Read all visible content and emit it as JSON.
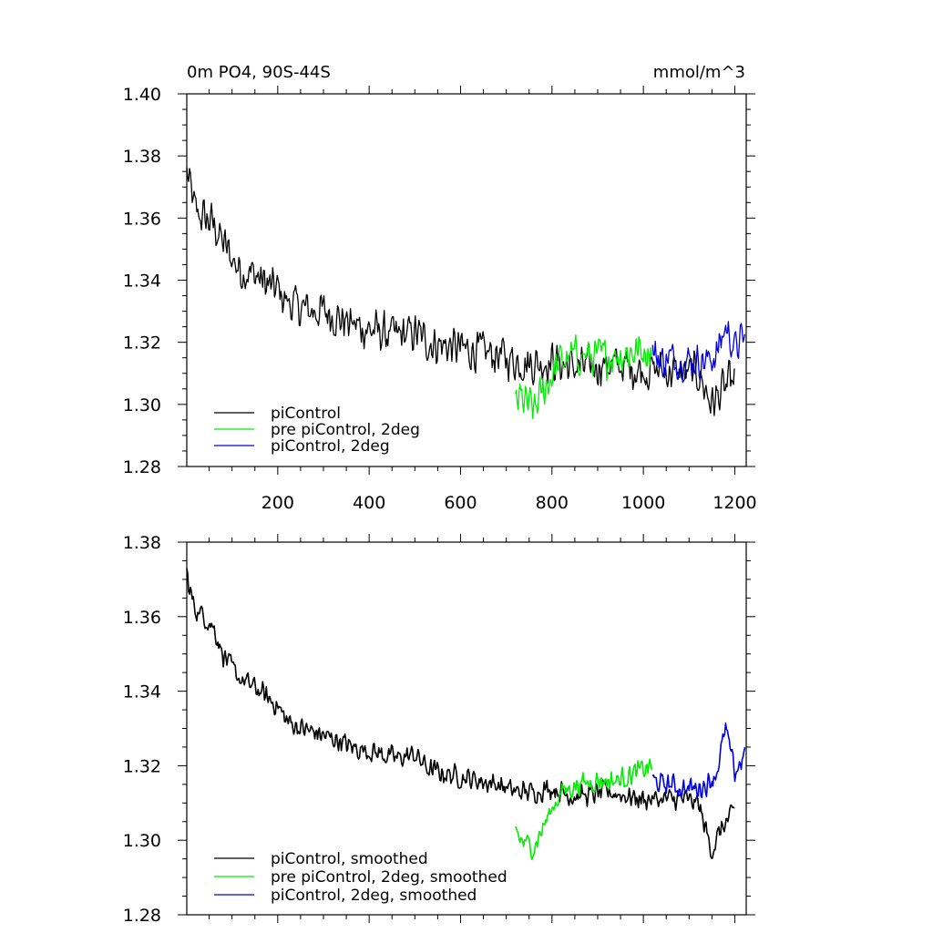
{
  "colors": {
    "piControl": "#000000",
    "pre_piControl_2deg": "#00ee00",
    "piControl_2deg": "#0000dd"
  },
  "chart_data": [
    {
      "type": "line",
      "title_left": "0m PO4, 90S-44S",
      "title_right": "mmol/m^3",
      "xlabel": "",
      "ylabel": "",
      "xlim": [
        1,
        1225
      ],
      "ylim": [
        1.28,
        1.4
      ],
      "xticks": [
        200,
        400,
        600,
        800,
        1000,
        1200
      ],
      "xtick_labels": [
        "200",
        "400",
        "600",
        "800",
        "1000",
        "1200"
      ],
      "yticks": [
        1.28,
        1.3,
        1.32,
        1.34,
        1.36,
        1.38,
        1.4
      ],
      "ytick_labels": [
        "1.28",
        "1.30",
        "1.32",
        "1.34",
        "1.36",
        "1.38",
        "1.40"
      ],
      "legend_location": "bottom-left",
      "series": [
        {
          "name": "piControl",
          "color": "#000000",
          "noise": 0.008,
          "x": [
            1,
            5,
            20,
            40,
            60,
            80,
            100,
            120,
            150,
            180,
            200,
            220,
            250,
            280,
            300,
            330,
            360,
            400,
            430,
            460,
            500,
            530,
            560,
            600,
            640,
            680,
            720,
            760,
            800,
            840,
            880,
            920,
            960,
            1000,
            1040,
            1080,
            1120,
            1150,
            1170,
            1190,
            1200
          ],
          "y": [
            1.375,
            1.372,
            1.362,
            1.36,
            1.358,
            1.352,
            1.347,
            1.343,
            1.342,
            1.338,
            1.337,
            1.333,
            1.331,
            1.33,
            1.33,
            1.328,
            1.326,
            1.324,
            1.323,
            1.322,
            1.323,
            1.32,
            1.319,
            1.318,
            1.317,
            1.316,
            1.314,
            1.313,
            1.314,
            1.312,
            1.312,
            1.313,
            1.312,
            1.311,
            1.311,
            1.31,
            1.31,
            1.3,
            1.304,
            1.307,
            1.308
          ]
        },
        {
          "name": "pre piControl, 2deg",
          "color": "#00ee00",
          "noise": 0.008,
          "x": [
            720,
            730,
            760,
            790,
            820,
            860,
            900,
            940,
            980,
            1020
          ],
          "y": [
            1.3,
            1.302,
            1.298,
            1.307,
            1.314,
            1.316,
            1.315,
            1.316,
            1.317,
            1.318
          ]
        },
        {
          "name": "piControl, 2deg",
          "color": "#0000dd",
          "noise": 0.007,
          "x": [
            1020,
            1040,
            1060,
            1080,
            1100,
            1120,
            1140,
            1160,
            1180,
            1200,
            1222
          ],
          "y": [
            1.317,
            1.314,
            1.315,
            1.314,
            1.314,
            1.314,
            1.314,
            1.316,
            1.325,
            1.318,
            1.322
          ]
        }
      ]
    },
    {
      "type": "line",
      "title_left": "",
      "title_right": "",
      "xlabel": "",
      "ylabel": "",
      "xlim": [
        1,
        1225
      ],
      "ylim": [
        1.28,
        1.38
      ],
      "xticks": [
        200,
        400,
        600,
        800,
        1000,
        1200
      ],
      "xtick_labels": [],
      "yticks": [
        1.28,
        1.3,
        1.32,
        1.34,
        1.36,
        1.38
      ],
      "ytick_labels": [
        "1.28",
        "1.30",
        "1.32",
        "1.34",
        "1.36",
        "1.38"
      ],
      "legend_location": "bottom-left",
      "series": [
        {
          "name": "piControl, smoothed",
          "color": "#000000",
          "noise": 0.0035,
          "x": [
            1,
            5,
            20,
            40,
            60,
            80,
            100,
            120,
            150,
            180,
            200,
            220,
            250,
            280,
            300,
            330,
            360,
            400,
            430,
            460,
            500,
            530,
            560,
            600,
            640,
            680,
            720,
            760,
            800,
            840,
            880,
            920,
            960,
            1000,
            1040,
            1080,
            1120,
            1150,
            1170,
            1190,
            1200
          ],
          "y": [
            1.372,
            1.368,
            1.362,
            1.36,
            1.357,
            1.35,
            1.346,
            1.343,
            1.341,
            1.338,
            1.336,
            1.332,
            1.33,
            1.329,
            1.328,
            1.327,
            1.325,
            1.324,
            1.323,
            1.322,
            1.323,
            1.319,
            1.318,
            1.317,
            1.316,
            1.315,
            1.313,
            1.313,
            1.314,
            1.312,
            1.312,
            1.313,
            1.312,
            1.311,
            1.311,
            1.311,
            1.31,
            1.297,
            1.303,
            1.306,
            1.308
          ]
        },
        {
          "name": "pre piControl, 2deg, smoothed",
          "color": "#00ee00",
          "noise": 0.0035,
          "x": [
            720,
            730,
            760,
            790,
            820,
            860,
            900,
            940,
            980,
            1020
          ],
          "y": [
            1.304,
            1.3,
            1.298,
            1.306,
            1.313,
            1.315,
            1.316,
            1.316,
            1.318,
            1.32
          ]
        },
        {
          "name": "piControl, 2deg, smoothed",
          "color": "#0000dd",
          "noise": 0.0035,
          "x": [
            1020,
            1040,
            1060,
            1080,
            1100,
            1120,
            1140,
            1160,
            1180,
            1200,
            1222
          ],
          "y": [
            1.316,
            1.315,
            1.315,
            1.314,
            1.314,
            1.314,
            1.315,
            1.318,
            1.33,
            1.318,
            1.323
          ]
        }
      ]
    }
  ]
}
